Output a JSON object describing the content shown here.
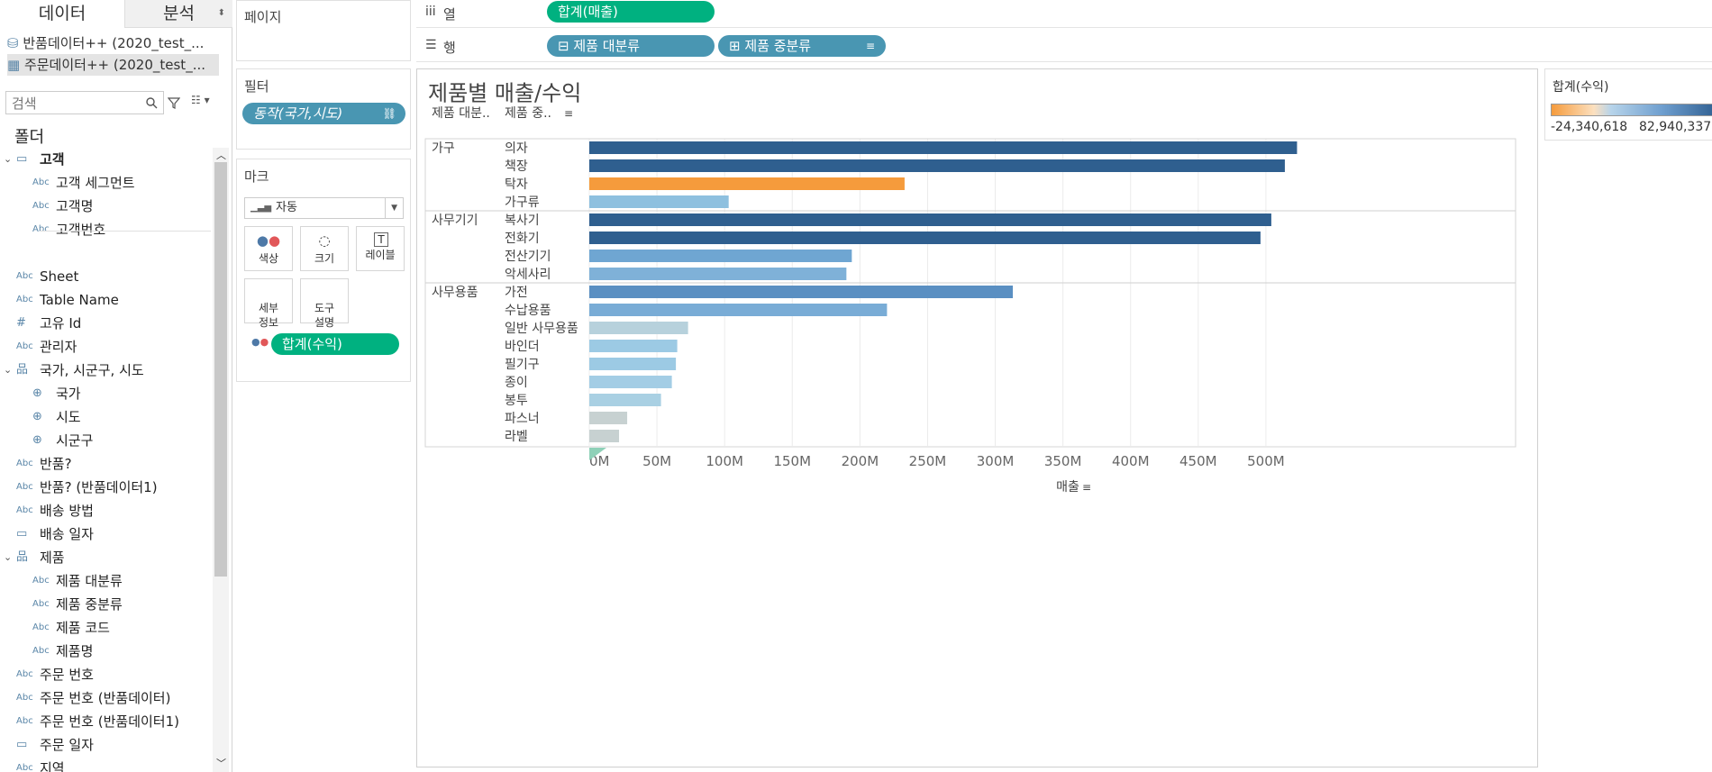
{
  "tabs": {
    "data": "데이터",
    "analysis": "분석"
  },
  "datasources": [
    {
      "label": "반품데이터++ (2020_test_...",
      "icon": "cylinder-icon"
    },
    {
      "label": "주문데이터++ (2020_test_...",
      "icon": "grid-icon"
    }
  ],
  "search": {
    "placeholder": "검색"
  },
  "folder_header": "폴더",
  "fields": [
    {
      "label": "고객",
      "type": "folder",
      "indent": 0,
      "bold": true,
      "toggle": "⌄"
    },
    {
      "label": "고객 세그먼트",
      "type": "Abc",
      "indent": 1
    },
    {
      "label": "고객명",
      "type": "Abc",
      "indent": 1
    },
    {
      "label": "고객번호",
      "type": "Abc",
      "indent": 1
    },
    {
      "label": "",
      "type": "",
      "indent": 0
    },
    {
      "label": "Sheet",
      "type": "Abc",
      "indent": 0
    },
    {
      "label": "Table Name",
      "type": "Abc",
      "indent": 0
    },
    {
      "label": "고유 Id",
      "type": "#",
      "indent": 0
    },
    {
      "label": "관리자",
      "type": "Abc",
      "indent": 0
    },
    {
      "label": "국가, 시군구, 시도",
      "type": "hier",
      "indent": 0,
      "toggle": "⌄"
    },
    {
      "label": "국가",
      "type": "globe",
      "indent": 1
    },
    {
      "label": "시도",
      "type": "globe",
      "indent": 1
    },
    {
      "label": "시군구",
      "type": "globe",
      "indent": 1
    },
    {
      "label": "반품?",
      "type": "Abc",
      "indent": 0
    },
    {
      "label": "반품? (반품데이터1)",
      "type": "Abc",
      "indent": 0
    },
    {
      "label": "배송 방법",
      "type": "Abc",
      "indent": 0
    },
    {
      "label": "배송 일자",
      "type": "date",
      "indent": 0
    },
    {
      "label": "제품",
      "type": "hier",
      "indent": 0,
      "toggle": "⌄"
    },
    {
      "label": "제품 대분류",
      "type": "Abc",
      "indent": 1
    },
    {
      "label": "제품 중분류",
      "type": "Abc",
      "indent": 1
    },
    {
      "label": "제품 코드",
      "type": "Abc",
      "indent": 1
    },
    {
      "label": "제품명",
      "type": "Abc",
      "indent": 1
    },
    {
      "label": "주문 번호",
      "type": "Abc",
      "indent": 0
    },
    {
      "label": "주문 번호 (반품데이터)",
      "type": "Abc",
      "indent": 0
    },
    {
      "label": "주문 번호 (반품데이터1)",
      "type": "Abc",
      "indent": 0
    },
    {
      "label": "주문 일자",
      "type": "date",
      "indent": 0
    },
    {
      "label": "지역",
      "type": "Abc",
      "indent": 0
    }
  ],
  "shelves": {
    "pages_label": "페이지",
    "filters_label": "필터",
    "filter_pill": "동작(국가,시도)",
    "marks_label": "마크",
    "mark_type": "자동",
    "mark_buttons": [
      "색상",
      "크기",
      "레이블",
      "세부\n정보",
      "도구\n설명"
    ],
    "color_pill": "합계(수익)",
    "columns_label": "열",
    "columns_pill": "합계(매출)",
    "rows_label": "행",
    "rows_pills": [
      "⊟ 제품 대분류",
      "⊞ 제품 중분류"
    ]
  },
  "legend": {
    "title": "합계(수익)",
    "min_label": "-24,340,618",
    "max_label": "82,940,337"
  },
  "chart_data": {
    "type": "bar",
    "title": "제품별 매출/수익",
    "header_labels": [
      "제품 대분..",
      "제품 중.."
    ],
    "xlabel": "매출",
    "xlim": [
      0,
      550000000
    ],
    "x_ticks": [
      "0M",
      "50M",
      "100M",
      "150M",
      "200M",
      "250M",
      "300M",
      "350M",
      "400M",
      "450M",
      "500M"
    ],
    "groups": [
      {
        "name": "가구",
        "items": [
          {
            "label": "의자",
            "value": 523000000,
            "color": "#2f5f8f"
          },
          {
            "label": "책장",
            "value": 514000000,
            "color": "#2f5f8f"
          },
          {
            "label": "탁자",
            "value": 233000000,
            "color": "#f59b3c"
          },
          {
            "label": "가구류",
            "value": 103000000,
            "color": "#8ec0df"
          }
        ]
      },
      {
        "name": "사무기기",
        "items": [
          {
            "label": "복사기",
            "value": 504000000,
            "color": "#2f5f8f"
          },
          {
            "label": "전화기",
            "value": 496000000,
            "color": "#2f5f8f"
          },
          {
            "label": "전산기기",
            "value": 194000000,
            "color": "#6fa6d2"
          },
          {
            "label": "악세사리",
            "value": 190000000,
            "color": "#7fb1d8"
          }
        ]
      },
      {
        "name": "사무용품",
        "items": [
          {
            "label": "가전",
            "value": 313000000,
            "color": "#5a8fc2"
          },
          {
            "label": "수납용품",
            "value": 220000000,
            "color": "#79acd6"
          },
          {
            "label": "일반 사무용품",
            "value": 73000000,
            "color": "#b7d1dc"
          },
          {
            "label": "바인더",
            "value": 65000000,
            "color": "#9ccae4"
          },
          {
            "label": "필기구",
            "value": 64000000,
            "color": "#9ccae4"
          },
          {
            "label": "종이",
            "value": 61000000,
            "color": "#a3cde5"
          },
          {
            "label": "봉투",
            "value": 53000000,
            "color": "#a9d0e3"
          },
          {
            "label": "파스너",
            "value": 28000000,
            "color": "#c7d1d1"
          },
          {
            "label": "라벨",
            "value": 22000000,
            "color": "#c7d1d1"
          }
        ]
      }
    ]
  }
}
